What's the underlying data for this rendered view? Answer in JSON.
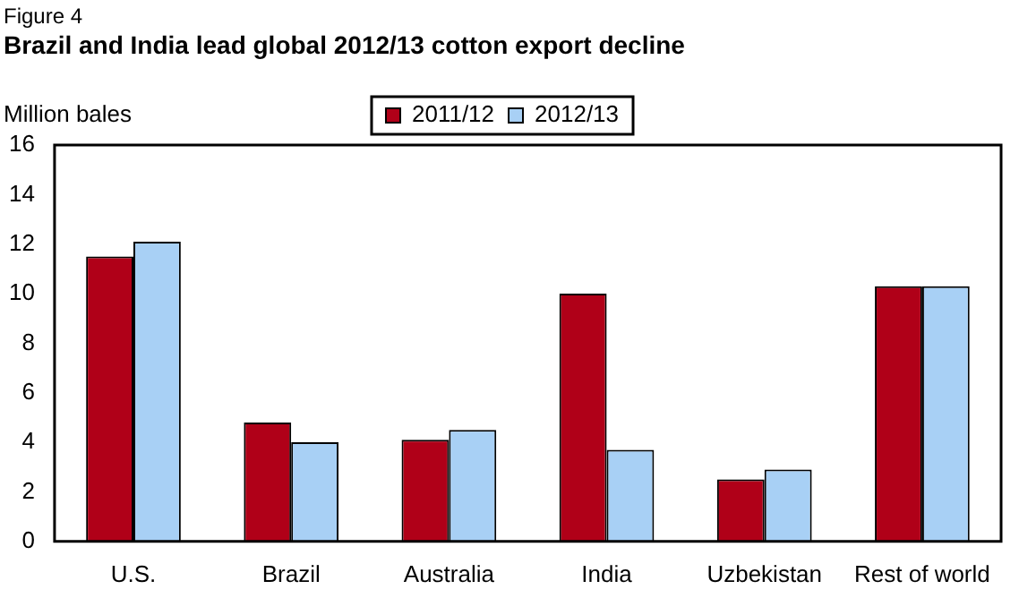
{
  "chart_data": {
    "type": "bar",
    "title": "Brazil and India lead global 2012/13 cotton export decline",
    "ylabel": "Million bales",
    "annotations": [
      "Figure 4"
    ],
    "categories": [
      "U.S.",
      "Brazil",
      "Australia",
      "India",
      "Uzbekistan",
      "Rest of world"
    ],
    "series": [
      {
        "name": "2011/12",
        "color": "#b00018",
        "values": [
          11.5,
          4.8,
          4.1,
          10.0,
          2.5,
          10.3
        ]
      },
      {
        "name": "2012/13",
        "color": "#a8d0f5",
        "values": [
          12.1,
          4.0,
          4.5,
          3.7,
          2.9,
          10.3
        ]
      }
    ],
    "ylim": [
      0,
      16
    ],
    "yticks": [
      0,
      2,
      4,
      6,
      8,
      10,
      12,
      14,
      16
    ],
    "grid": false,
    "legend": "top"
  }
}
